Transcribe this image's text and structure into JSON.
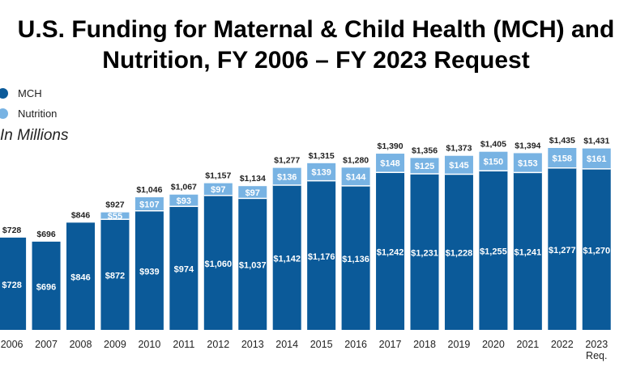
{
  "chart_data": {
    "type": "bar",
    "stacked": true,
    "title_line1": "U.S. Funding for Maternal & Child Health (MCH) and",
    "title_line2": "Nutrition, FY 2006 – FY 2023 Request",
    "unit_note": "In Millions",
    "categories": [
      [
        "2006"
      ],
      [
        "2007"
      ],
      [
        "2008"
      ],
      [
        "2009"
      ],
      [
        "2010"
      ],
      [
        "2011"
      ],
      [
        "2012"
      ],
      [
        "2013"
      ],
      [
        "2014"
      ],
      [
        "2015"
      ],
      [
        "2016"
      ],
      [
        "2017"
      ],
      [
        "2018"
      ],
      [
        "2019"
      ],
      [
        "2020"
      ],
      [
        "2021"
      ],
      [
        "2022"
      ],
      [
        "2023",
        "Req."
      ]
    ],
    "series": [
      {
        "name": "MCH",
        "color": "#0b5a99",
        "values": [
          728,
          696,
          846,
          872,
          939,
          974,
          1060,
          1037,
          1142,
          1176,
          1136,
          1242,
          1231,
          1228,
          1255,
          1241,
          1277,
          1270
        ],
        "labels": [
          "$728",
          "$696",
          "$846",
          "$872",
          "$939",
          "$974",
          "$1,060",
          "$1,037",
          "$1,142",
          "$1,176",
          "$1,136",
          "$1,242",
          "$1,231",
          "$1,228",
          "$1,255",
          "$1,241",
          "$1,277",
          "$1,270"
        ]
      },
      {
        "name": "Nutrition",
        "color": "#78b3e3",
        "values": [
          0,
          0,
          0,
          55,
          107,
          93,
          97,
          97,
          136,
          139,
          144,
          148,
          125,
          145,
          150,
          153,
          158,
          161
        ],
        "labels": [
          "",
          "",
          "",
          "$55",
          "$107",
          "$93",
          "$97",
          "$97",
          "$136",
          "$139",
          "$144",
          "$148",
          "$125",
          "$145",
          "$150",
          "$153",
          "$158",
          "$161"
        ]
      }
    ],
    "totals": [
      728,
      696,
      846,
      927,
      1046,
      1067,
      1157,
      1134,
      1277,
      1315,
      1280,
      1390,
      1356,
      1373,
      1405,
      1394,
      1435,
      1431
    ],
    "total_labels": [
      "$728",
      "$696",
      "$846",
      "$927",
      "$1,046",
      "$1,067",
      "$1,157",
      "$1,134",
      "$1,277",
      "$1,315",
      "$1,280",
      "$1,390",
      "$1,356",
      "$1,373",
      "$1,405",
      "$1,394",
      "$1,435",
      "$1,431"
    ],
    "ylim": [
      0,
      1435
    ],
    "grid": false,
    "legend_position": "top-left"
  }
}
